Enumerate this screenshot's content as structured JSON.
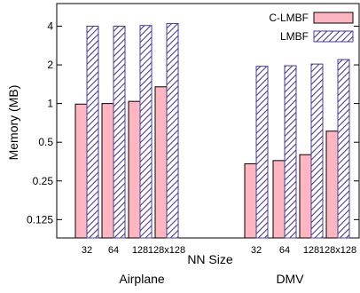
{
  "chart_data": {
    "type": "bar",
    "ylabel": "Memory (MB)",
    "xlabel": "NN Size",
    "yscale": "log2",
    "ylim": [
      0.09,
      6.0
    ],
    "yticks": [
      {
        "value": 0.125,
        "label": "0.125"
      },
      {
        "value": 0.25,
        "label": "0.25"
      },
      {
        "value": 0.5,
        "label": "0.5"
      },
      {
        "value": 1,
        "label": "1"
      },
      {
        "value": 2,
        "label": "2"
      },
      {
        "value": 4,
        "label": "4"
      }
    ],
    "groups": [
      {
        "name": "Airplane",
        "categories": [
          "32",
          "64",
          "128",
          "128x128"
        ]
      },
      {
        "name": "DMV",
        "categories": [
          "32",
          "64",
          "128",
          "128x128"
        ]
      }
    ],
    "series": [
      {
        "name": "C-LMBF",
        "color": "#ffb6c1",
        "pattern": "solid",
        "values": [
          0.99,
          1.0,
          1.04,
          1.35,
          0.34,
          0.36,
          0.4,
          0.61
        ]
      },
      {
        "name": "LMBF",
        "color": "#4b3c9a",
        "pattern": "diagonal-hatch",
        "values": [
          4.0,
          4.0,
          4.05,
          4.2,
          1.95,
          1.97,
          2.03,
          2.2
        ]
      }
    ],
    "legend_position": "top-right",
    "grid": false
  }
}
